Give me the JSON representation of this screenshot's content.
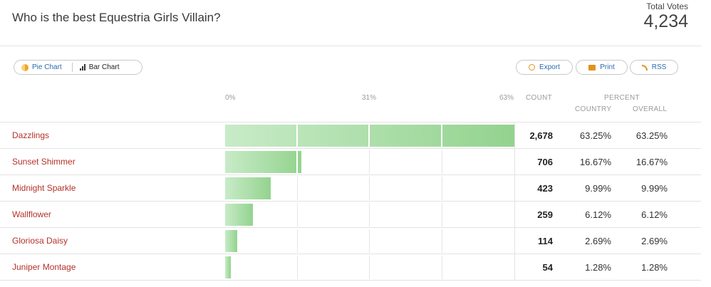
{
  "poll": {
    "question": "Who is the best Equestria Girls Villain?",
    "total_votes_label": "Total Votes",
    "total_votes": "4,234"
  },
  "toggles": {
    "pie_label": "Pie Chart",
    "bar_label": "Bar Chart"
  },
  "actions": {
    "export_label": "Export",
    "print_label": "Print",
    "rss_label": "RSS"
  },
  "columns": {
    "scale": [
      "0%",
      "31%",
      "63%"
    ],
    "count": "COUNT",
    "percent": "PERCENT",
    "country": "COUNTRY",
    "overall": "OVERALL"
  },
  "colors": {
    "name_link": "#b5312a",
    "bar_light": "#c8ebc8",
    "bar_dark": "#93d38e",
    "accent_icon": "#e2921e"
  },
  "chart_data": {
    "type": "bar",
    "xlim": [
      0,
      63
    ],
    "categories": [
      "Dazzlings",
      "Sunset Shimmer",
      "Midnight Sparkle",
      "Wallflower",
      "Gloriosa Daisy",
      "Juniper Montage"
    ],
    "values": [
      63.25,
      16.67,
      9.99,
      6.12,
      2.69,
      1.28
    ]
  },
  "rows": [
    {
      "name": "Dazzlings",
      "count": "2,678",
      "country": "63.25%",
      "overall": "63.25%"
    },
    {
      "name": "Sunset Shimmer",
      "count": "706",
      "country": "16.67%",
      "overall": "16.67%"
    },
    {
      "name": "Midnight Sparkle",
      "count": "423",
      "country": "9.99%",
      "overall": "9.99%"
    },
    {
      "name": "Wallflower",
      "count": "259",
      "country": "6.12%",
      "overall": "6.12%"
    },
    {
      "name": "Gloriosa Daisy",
      "count": "114",
      "country": "2.69%",
      "overall": "2.69%"
    },
    {
      "name": "Juniper Montage",
      "count": "54",
      "country": "1.28%",
      "overall": "1.28%"
    }
  ]
}
